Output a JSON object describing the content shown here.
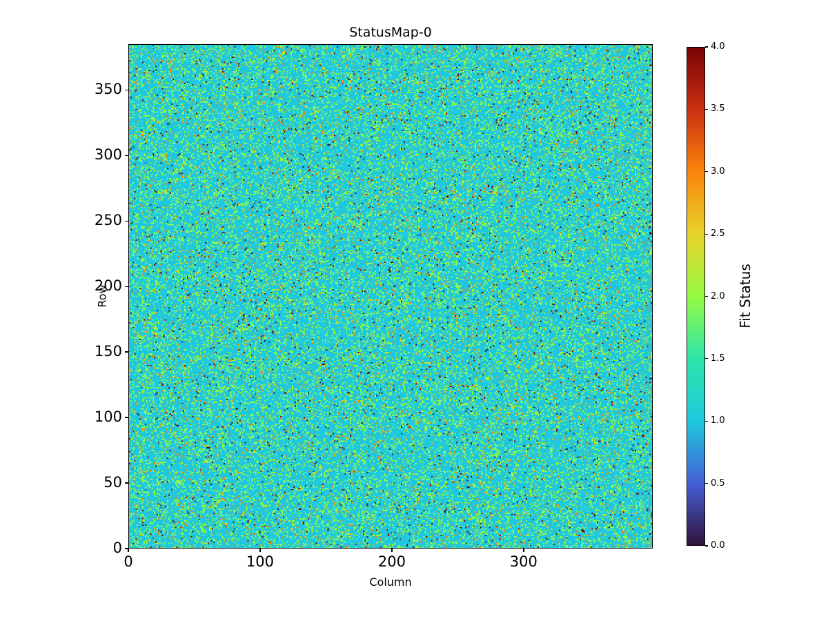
{
  "chart_data": {
    "type": "heatmap",
    "title": "StatusMap-0",
    "xlabel": "Column",
    "ylabel": "Row",
    "colorbar_label": "Fit Status",
    "cols": 398,
    "rows": 385,
    "xlim": [
      0,
      398
    ],
    "ylim": [
      0,
      385
    ],
    "x_ticks": [
      0,
      100,
      200,
      300
    ],
    "y_ticks": [
      0,
      50,
      100,
      150,
      200,
      250,
      300,
      350
    ],
    "colorbar_ticks": [
      0.0,
      0.5,
      1.0,
      1.5,
      2.0,
      2.5,
      3.0,
      3.5,
      4.0
    ],
    "vmin": 0,
    "vmax": 4,
    "colormap_name": "turbo",
    "colormap_stops": [
      "#30123b",
      "#4560d6",
      "#1fc8de",
      "#2ee5a9",
      "#95fa44",
      "#e8d32a",
      "#f9850c",
      "#cb2f11",
      "#7a0403"
    ],
    "value_distribution": {
      "0": 0.007,
      "1": 0.765,
      "2": 0.19,
      "3": 0.028,
      "4": 0.01
    },
    "seed": 42,
    "grid": false,
    "legend_position": "none",
    "colorbar_position": "right"
  }
}
